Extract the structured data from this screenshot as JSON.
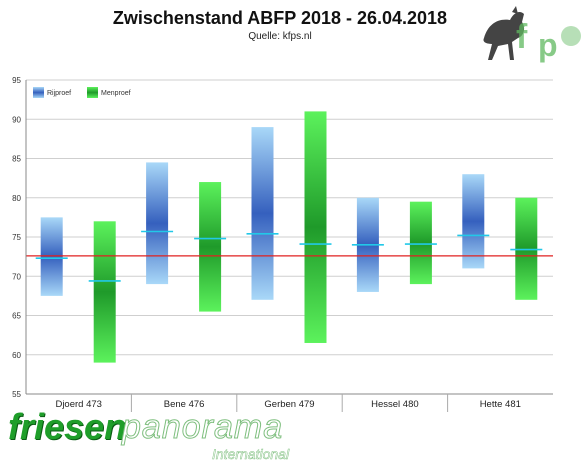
{
  "chart_data": {
    "type": "bar",
    "title": "Zwischenstand ABFP 2018 - 26.04.2018",
    "subtitle": "Quelle: kfps.nl",
    "categories": [
      "Djoerd 473",
      "Bene 476",
      "Gerben 479",
      "Hessel 480",
      "Hette 481"
    ],
    "series": [
      {
        "name": "Rijproef",
        "color": "#3a63bf",
        "low": [
          67.5,
          69,
          67,
          68,
          71
        ],
        "high": [
          77.5,
          84.5,
          89,
          80,
          83
        ],
        "mean": [
          72.3,
          75.7,
          75.4,
          74.0,
          75.2
        ]
      },
      {
        "name": "Menproef",
        "color": "#2bbf35",
        "low": [
          59,
          65.5,
          61.5,
          69,
          67
        ],
        "high": [
          77,
          82,
          91,
          79.5,
          80
        ],
        "mean": [
          69.4,
          74.8,
          74.1,
          74.1,
          73.4
        ]
      }
    ],
    "reference_line": {
      "value": 72.6,
      "color": "#e02020"
    },
    "ylim": [
      55,
      95
    ],
    "yticks": [
      55,
      60,
      65,
      70,
      75,
      80,
      85,
      90,
      95
    ],
    "grid": true,
    "legend": "top-left"
  },
  "logo": {
    "text": "kfps"
  },
  "watermark": {
    "brand": "friesen",
    "brand2": "panorama",
    "sub": "International"
  }
}
